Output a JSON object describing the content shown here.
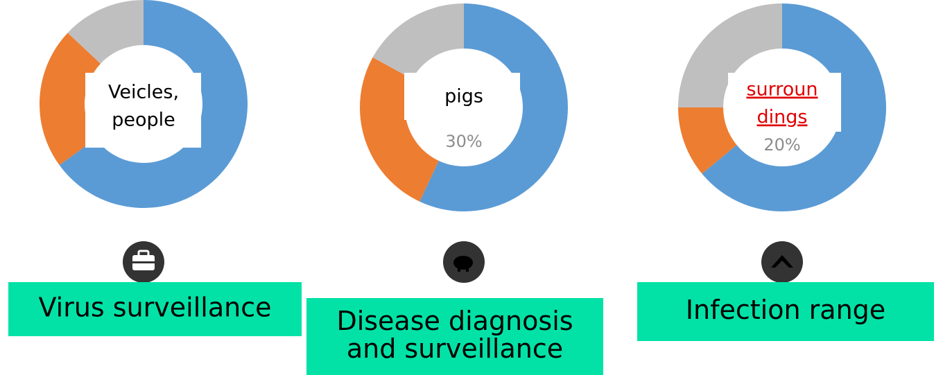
{
  "chart_data": [
    {
      "type": "pie",
      "values": [
        65,
        22,
        13
      ],
      "colors": [
        "#5b9bd5",
        "#ed7d31",
        "#bfbfbf"
      ],
      "center_text": [
        "Veicles,",
        "people"
      ],
      "caption": [
        "Virus surveillance"
      ]
    },
    {
      "type": "pie",
      "values": [
        57,
        26,
        17
      ],
      "colors": [
        "#5b9bd5",
        "#ed7d31",
        "#bfbfbf"
      ],
      "center_text": [
        "pigs"
      ],
      "center_note": "30%",
      "caption": [
        "Disease diagnosis",
        "and surveillance"
      ]
    },
    {
      "type": "pie",
      "values": [
        64,
        11,
        25
      ],
      "colors": [
        "#5b9bd5",
        "#ed7d31",
        "#bfbfbf"
      ],
      "center_text": [
        "surroun",
        "dings"
      ],
      "center_note": "20%",
      "caption": [
        "Infection range"
      ],
      "center_text_color": "red"
    }
  ]
}
